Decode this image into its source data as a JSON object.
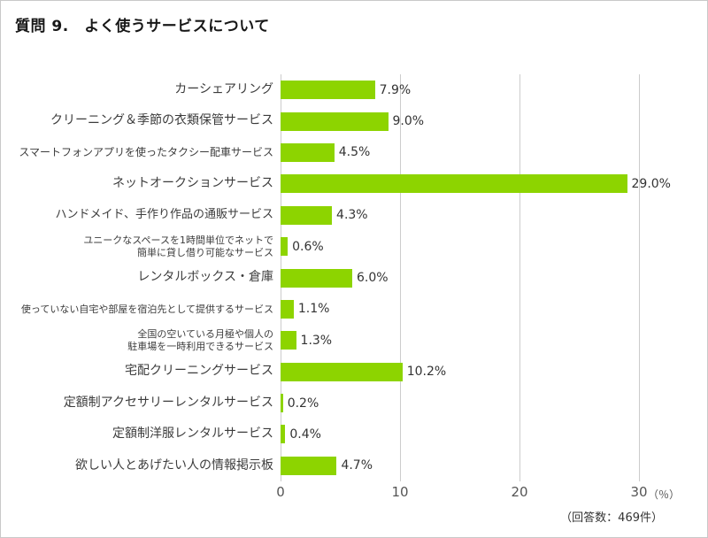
{
  "title": "質問 9.　よく使うサービスについて",
  "chart_data": {
    "type": "bar",
    "orientation": "horizontal",
    "title": "質問 9.　よく使うサービスについて",
    "categories": [
      "カーシェアリング",
      "クリーニング＆季節の衣類保管サービス",
      "スマートフォンアプリを使ったタクシー配車サービス",
      "ネットオークションサービス",
      "ハンドメイド、手作り作品の通販サービス",
      "ユニークなスペースを1時間単位でネットで\n簡単に貸し借り可能なサービス",
      "レンタルボックス・倉庫",
      "使っていない自宅や部屋を宿泊先として提供するサービス",
      "全国の空いている月極や個人の\n駐車場を一時利用できるサービス",
      "宅配クリーニングサービス",
      "定額制アクセサリーレンタルサービス",
      "定額制洋服レンタルサービス",
      "欲しい人とあげたい人の情報掲示板"
    ],
    "values": [
      7.9,
      9.0,
      4.5,
      29.0,
      4.3,
      0.6,
      6.0,
      1.1,
      1.3,
      10.2,
      0.2,
      0.4,
      4.7
    ],
    "value_labels": [
      "7.9%",
      "9.0%",
      "4.5%",
      "29.0%",
      "4.3%",
      "0.6%",
      "6.0%",
      "1.1%",
      "1.3%",
      "10.2%",
      "0.2%",
      "0.4%",
      "4.7%"
    ],
    "xlim": [
      0,
      30
    ],
    "x_ticks": [
      0,
      10,
      20,
      30
    ],
    "x_unit": "（％）",
    "footnote": "（回答数：469件）",
    "bar_color": "#8dd400",
    "grid": true,
    "legend": false
  }
}
